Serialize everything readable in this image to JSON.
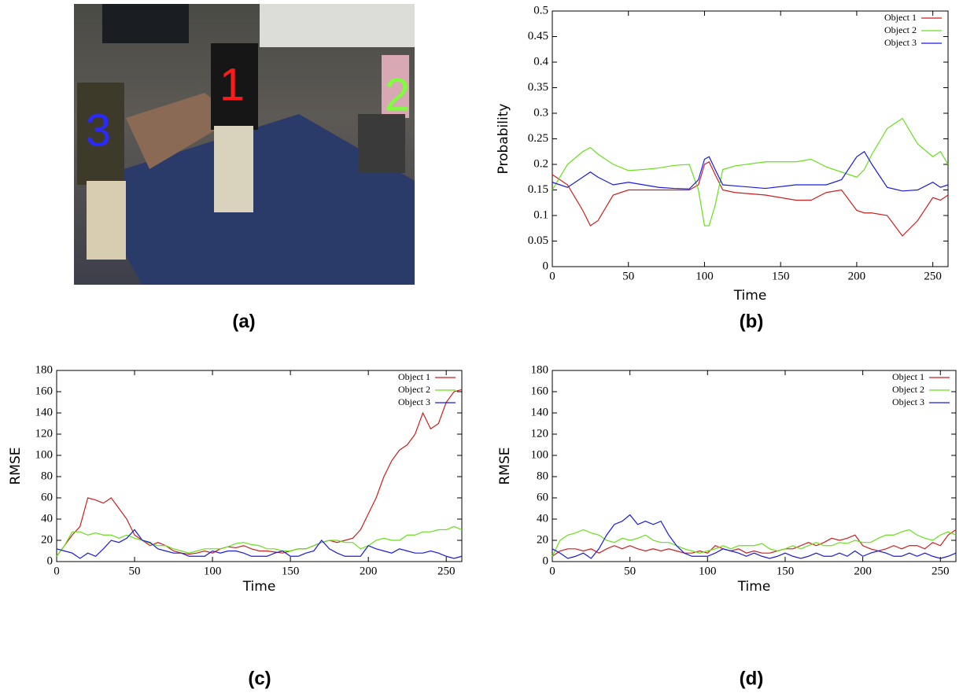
{
  "image": {
    "caption": "(a)",
    "labels": [
      {
        "text": "3",
        "color": "#2a2aff"
      },
      {
        "text": "1",
        "color": "#ff1a1a"
      },
      {
        "text": "2",
        "color": "#7dff3a"
      }
    ]
  },
  "chart_data": [
    {
      "type": "line",
      "caption": "(b)",
      "xlabel": "Time",
      "ylabel": "Probability",
      "xlim": [
        0,
        260
      ],
      "xticks": [
        0,
        50,
        100,
        150,
        200,
        250
      ],
      "ylim": [
        0,
        0.5
      ],
      "yticks": [
        0,
        0.05,
        0.1,
        0.15,
        0.2,
        0.25,
        0.3,
        0.35,
        0.4,
        0.45,
        0.5
      ],
      "legend": "top-right",
      "x": [
        0,
        10,
        20,
        25,
        30,
        40,
        50,
        60,
        70,
        80,
        90,
        96,
        100,
        103,
        107,
        112,
        120,
        140,
        160,
        170,
        180,
        190,
        200,
        205,
        210,
        220,
        230,
        240,
        250,
        255,
        260
      ],
      "series": [
        {
          "name": "Object 1",
          "color": "#cc1f1f",
          "values": [
            0.18,
            0.16,
            0.11,
            0.08,
            0.09,
            0.14,
            0.15,
            0.15,
            0.15,
            0.15,
            0.15,
            0.16,
            0.2,
            0.205,
            0.18,
            0.15,
            0.145,
            0.14,
            0.13,
            0.13,
            0.145,
            0.15,
            0.11,
            0.105,
            0.105,
            0.1,
            0.06,
            0.09,
            0.135,
            0.13,
            0.14
          ]
        },
        {
          "name": "Object 2",
          "color": "#66e01a",
          "values": [
            0.15,
            0.2,
            0.225,
            0.233,
            0.22,
            0.2,
            0.188,
            0.19,
            0.193,
            0.198,
            0.2,
            0.15,
            0.08,
            0.08,
            0.12,
            0.19,
            0.197,
            0.205,
            0.205,
            0.21,
            0.195,
            0.185,
            0.175,
            0.19,
            0.22,
            0.27,
            0.29,
            0.24,
            0.215,
            0.225,
            0.2
          ]
        },
        {
          "name": "Object 3",
          "color": "#1a1ae0",
          "values": [
            0.165,
            0.155,
            0.175,
            0.185,
            0.175,
            0.16,
            0.165,
            0.16,
            0.155,
            0.153,
            0.152,
            0.17,
            0.21,
            0.215,
            0.19,
            0.16,
            0.158,
            0.153,
            0.16,
            0.16,
            0.16,
            0.17,
            0.215,
            0.225,
            0.2,
            0.155,
            0.148,
            0.15,
            0.165,
            0.155,
            0.16
          ]
        }
      ]
    },
    {
      "type": "line",
      "caption": "(c)",
      "xlabel": "Time",
      "ylabel": "RMSE",
      "xlim": [
        0,
        260
      ],
      "xticks": [
        0,
        50,
        100,
        150,
        200,
        250
      ],
      "ylim": [
        0,
        180
      ],
      "yticks": [
        0,
        20,
        40,
        60,
        80,
        100,
        120,
        140,
        160,
        180
      ],
      "legend": "top-right",
      "x": [
        0,
        5,
        10,
        15,
        20,
        25,
        30,
        35,
        40,
        45,
        50,
        55,
        60,
        65,
        70,
        75,
        80,
        85,
        90,
        95,
        100,
        105,
        110,
        115,
        120,
        125,
        130,
        135,
        140,
        145,
        150,
        155,
        160,
        165,
        170,
        175,
        180,
        185,
        190,
        195,
        200,
        205,
        210,
        215,
        220,
        225,
        230,
        235,
        240,
        245,
        250,
        255,
        260
      ],
      "series": [
        {
          "name": "Object 1",
          "color": "#cc1f1f",
          "values": [
            5,
            15,
            25,
            33,
            60,
            58,
            55,
            60,
            50,
            40,
            25,
            20,
            15,
            18,
            15,
            10,
            8,
            7,
            8,
            10,
            8,
            12,
            14,
            13,
            15,
            12,
            10,
            10,
            9,
            8,
            10,
            12,
            12,
            15,
            18,
            20,
            18,
            20,
            22,
            30,
            45,
            60,
            80,
            95,
            105,
            110,
            120,
            140,
            125,
            130,
            150,
            160,
            162
          ]
        },
        {
          "name": "Object 2",
          "color": "#66e01a",
          "values": [
            5,
            15,
            28,
            28,
            25,
            27,
            25,
            25,
            22,
            25,
            22,
            20,
            17,
            15,
            15,
            12,
            10,
            8,
            10,
            12,
            12,
            12,
            14,
            17,
            18,
            16,
            15,
            12,
            12,
            10,
            10,
            12,
            12,
            15,
            18,
            20,
            20,
            18,
            18,
            12,
            15,
            20,
            22,
            20,
            20,
            25,
            25,
            28,
            28,
            30,
            30,
            33,
            30
          ]
        },
        {
          "name": "Object 3",
          "color": "#1a1ae0",
          "values": [
            12,
            10,
            8,
            3,
            8,
            5,
            12,
            20,
            18,
            22,
            30,
            20,
            18,
            12,
            10,
            8,
            8,
            5,
            5,
            5,
            10,
            8,
            10,
            10,
            8,
            5,
            5,
            5,
            8,
            10,
            5,
            5,
            8,
            10,
            20,
            12,
            8,
            5,
            5,
            5,
            15,
            12,
            10,
            8,
            12,
            10,
            8,
            8,
            10,
            8,
            5,
            3,
            5
          ]
        }
      ]
    },
    {
      "type": "line",
      "caption": "(d)",
      "xlabel": "Time",
      "ylabel": "RMSE",
      "xlim": [
        0,
        260
      ],
      "xticks": [
        0,
        50,
        100,
        150,
        200,
        250
      ],
      "ylim": [
        0,
        180
      ],
      "yticks": [
        0,
        20,
        40,
        60,
        80,
        100,
        120,
        140,
        160,
        180
      ],
      "legend": "top-right",
      "x": [
        0,
        5,
        10,
        15,
        20,
        25,
        30,
        35,
        40,
        45,
        50,
        55,
        60,
        65,
        70,
        75,
        80,
        85,
        90,
        95,
        100,
        105,
        110,
        115,
        120,
        125,
        130,
        135,
        140,
        145,
        150,
        155,
        160,
        165,
        170,
        175,
        180,
        185,
        190,
        195,
        200,
        205,
        210,
        215,
        220,
        225,
        230,
        235,
        240,
        245,
        250,
        255,
        260
      ],
      "series": [
        {
          "name": "Object 1",
          "color": "#cc1f1f",
          "values": [
            5,
            10,
            12,
            12,
            10,
            12,
            8,
            12,
            15,
            12,
            15,
            12,
            10,
            12,
            10,
            12,
            10,
            8,
            8,
            10,
            8,
            15,
            12,
            10,
            12,
            8,
            10,
            8,
            8,
            10,
            12,
            12,
            15,
            18,
            15,
            18,
            22,
            20,
            22,
            25,
            15,
            12,
            10,
            12,
            15,
            12,
            15,
            15,
            12,
            18,
            15,
            25,
            30
          ]
        },
        {
          "name": "Object 2",
          "color": "#66e01a",
          "values": [
            5,
            20,
            25,
            27,
            30,
            27,
            25,
            20,
            18,
            22,
            20,
            22,
            25,
            20,
            18,
            18,
            15,
            12,
            10,
            8,
            10,
            12,
            15,
            12,
            15,
            15,
            15,
            17,
            12,
            10,
            12,
            15,
            12,
            15,
            18,
            15,
            15,
            18,
            17,
            20,
            18,
            18,
            22,
            25,
            25,
            28,
            30,
            25,
            22,
            20,
            25,
            28,
            25
          ]
        },
        {
          "name": "Object 3",
          "color": "#1a1ae0",
          "values": [
            12,
            8,
            3,
            5,
            8,
            3,
            12,
            25,
            35,
            38,
            44,
            35,
            38,
            35,
            38,
            25,
            15,
            8,
            5,
            5,
            5,
            8,
            12,
            10,
            8,
            5,
            8,
            5,
            3,
            5,
            8,
            5,
            3,
            5,
            8,
            5,
            5,
            8,
            5,
            10,
            5,
            8,
            10,
            8,
            5,
            5,
            8,
            5,
            8,
            5,
            3,
            5,
            8
          ]
        }
      ]
    }
  ]
}
